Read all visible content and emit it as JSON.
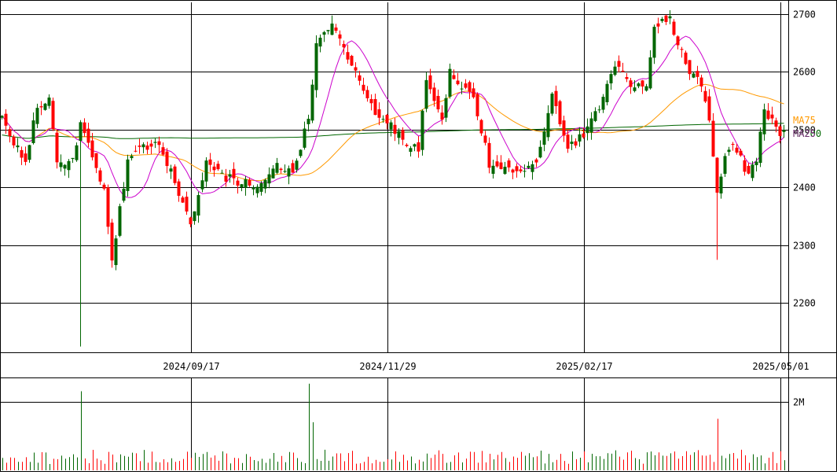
{
  "chart_data": {
    "type": "candlestick",
    "price_axis": {
      "ticks": [
        2700,
        2600,
        2500,
        2400,
        2300,
        2200
      ],
      "tick_labels": [
        "2700",
        "2600",
        "2500",
        "2400",
        "2300",
        "2200"
      ],
      "range": [
        2115,
        2720
      ]
    },
    "x_axis": {
      "tick_labels": [
        "2024/09/17",
        "2024/11/29",
        "2025/02/17",
        "2025/05/01"
      ],
      "tick_index": [
        48,
        98,
        148,
        198
      ]
    },
    "volume_axis": {
      "tick_labels": [
        "2M"
      ],
      "ticks": [
        2000000
      ],
      "range": [
        0,
        2700000
      ]
    },
    "legend": {
      "ma75_label": "MA75",
      "ma200_label": "MA200",
      "ma25_label": "MA25"
    },
    "colors": {
      "up": "#006600",
      "down": "#ff0000",
      "ma25": "#cc00cc",
      "ma75": "#ff9900",
      "ma200": "#006600",
      "grid": "#000000",
      "volume_up": "#006600",
      "volume_down": "#ff0000"
    },
    "anchors": [
      [
        0,
        2520
      ],
      [
        6,
        2440
      ],
      [
        8,
        2520
      ],
      [
        12,
        2560
      ],
      [
        14,
        2440
      ],
      [
        18,
        2450
      ],
      [
        20,
        2510
      ],
      [
        22,
        2470
      ],
      [
        26,
        2390
      ],
      [
        28,
        2270
      ],
      [
        32,
        2450
      ],
      [
        36,
        2470
      ],
      [
        40,
        2480
      ],
      [
        44,
        2410
      ],
      [
        48,
        2340
      ],
      [
        52,
        2440
      ],
      [
        56,
        2420
      ],
      [
        60,
        2410
      ],
      [
        66,
        2400
      ],
      [
        70,
        2440
      ],
      [
        74,
        2420
      ],
      [
        78,
        2520
      ],
      [
        80,
        2650
      ],
      [
        84,
        2690
      ],
      [
        88,
        2620
      ],
      [
        92,
        2570
      ],
      [
        96,
        2520
      ],
      [
        100,
        2500
      ],
      [
        104,
        2470
      ],
      [
        106,
        2470
      ],
      [
        108,
        2580
      ],
      [
        112,
        2520
      ],
      [
        114,
        2600
      ],
      [
        118,
        2570
      ],
      [
        120,
        2560
      ],
      [
        124,
        2440
      ],
      [
        128,
        2430
      ],
      [
        132,
        2430
      ],
      [
        136,
        2440
      ],
      [
        140,
        2560
      ],
      [
        144,
        2470
      ],
      [
        148,
        2490
      ],
      [
        152,
        2540
      ],
      [
        156,
        2610
      ],
      [
        160,
        2580
      ],
      [
        164,
        2570
      ],
      [
        166,
        2680
      ],
      [
        170,
        2690
      ],
      [
        174,
        2610
      ],
      [
        178,
        2580
      ],
      [
        180,
        2520
      ],
      [
        182,
        2390
      ],
      [
        184,
        2450
      ],
      [
        186,
        2480
      ],
      [
        190,
        2420
      ],
      [
        192,
        2450
      ],
      [
        194,
        2530
      ],
      [
        196,
        2520
      ],
      [
        198,
        2490
      ],
      [
        199,
        2500
      ]
    ],
    "count": 200,
    "seed": 17
  }
}
